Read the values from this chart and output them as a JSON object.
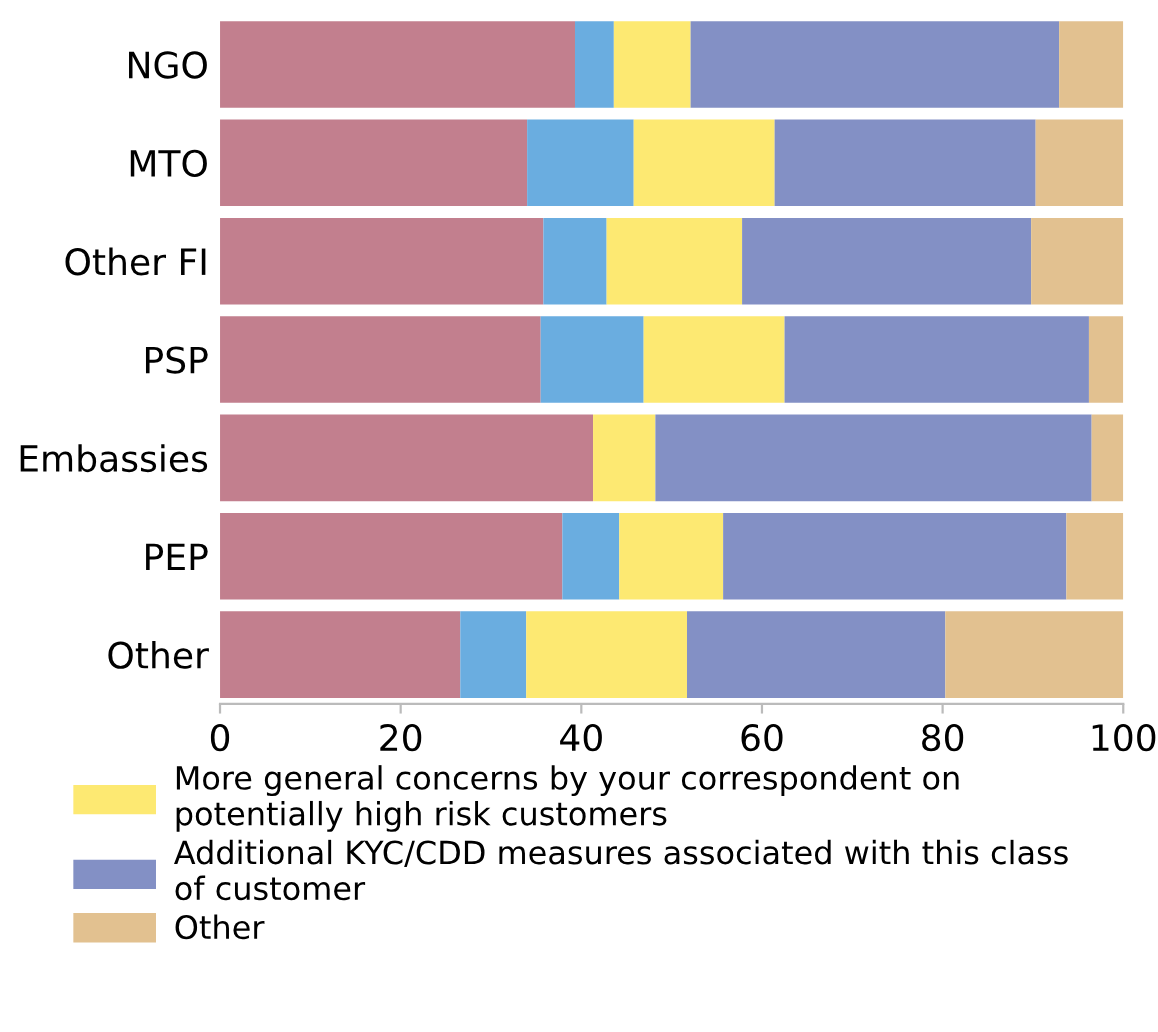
{
  "chart_data": {
    "type": "bar",
    "orientation": "horizontal",
    "stacked": true,
    "categories": [
      "NGO",
      "MTO",
      "Other FI",
      "PSP",
      "Embassies",
      "PEP",
      "Other"
    ],
    "series": [
      {
        "color": "#c27f8e",
        "values": [
          39.3,
          34.0,
          35.8,
          35.5,
          41.3,
          37.9,
          26.6
        ]
      },
      {
        "color": "#6aade0",
        "values": [
          4.3,
          11.8,
          7.0,
          11.4,
          0,
          6.3,
          7.3
        ]
      },
      {
        "name": "More general concerns by your correspondent on\npotentially high risk customers",
        "color": "#fde972",
        "values": [
          8.5,
          15.6,
          15.0,
          15.6,
          6.9,
          11.5,
          17.8
        ]
      },
      {
        "name": "Additional KYC/CDD measures associated with this class\nof customer",
        "color": "#8390c5",
        "values": [
          40.8,
          28.9,
          32.0,
          33.7,
          48.3,
          38.0,
          28.6
        ]
      },
      {
        "name": "Other",
        "color": "#e2c190",
        "values": [
          7.1,
          9.7,
          10.2,
          3.8,
          3.5,
          6.3,
          19.7
        ]
      }
    ],
    "xlim": [
      0,
      100
    ],
    "xticks": [
      0,
      20,
      40,
      60,
      80,
      100
    ],
    "grid": false,
    "legend": "bottom"
  }
}
